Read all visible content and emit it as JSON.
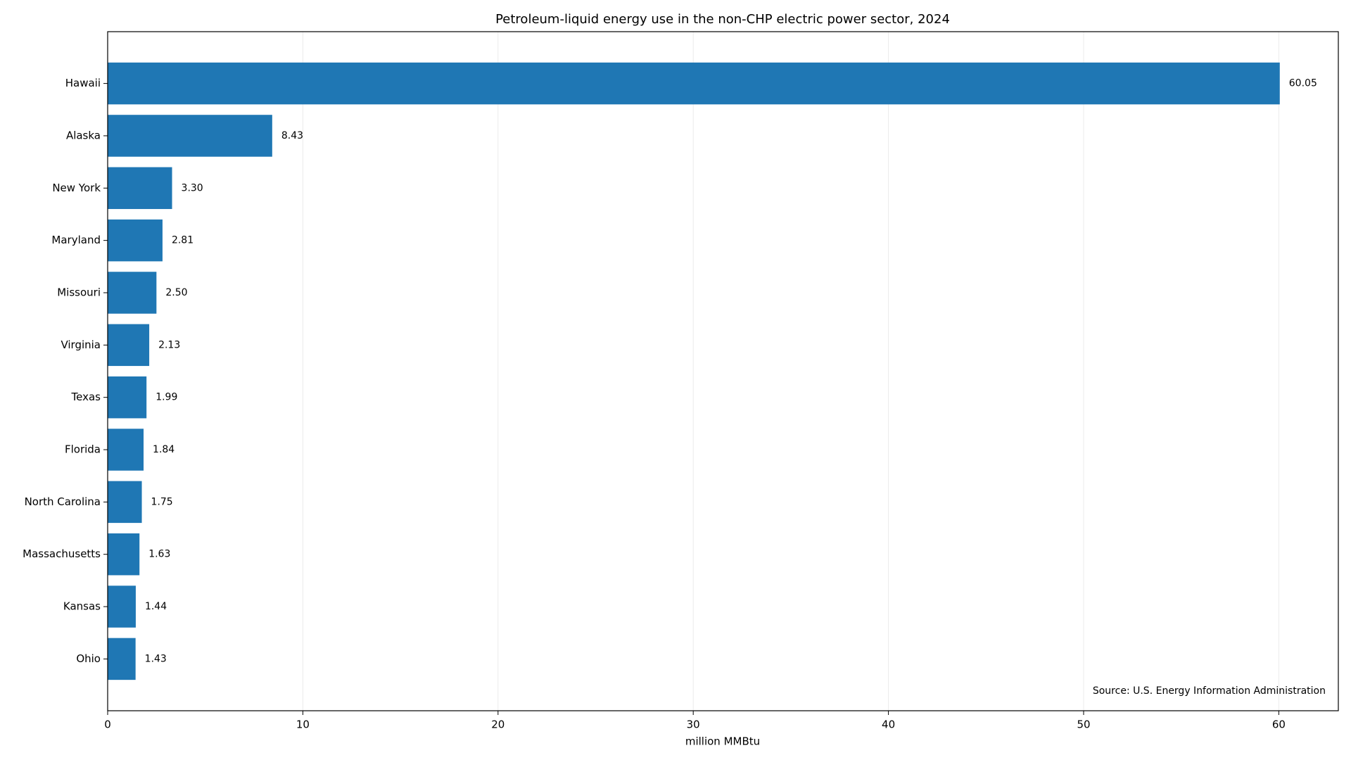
{
  "chart_data": {
    "type": "barh",
    "title": "Petroleum-liquid energy use in the non-CHP electric power sector, 2024",
    "xlabel": "million MMBtu",
    "annotation": "Source: U.S. Energy Information Administration",
    "categories": [
      "Hawaii",
      "Alaska",
      "New York",
      "Maryland",
      "Missouri",
      "Virginia",
      "Texas",
      "Florida",
      "North Carolina",
      "Massachusetts",
      "Kansas",
      "Ohio"
    ],
    "values": [
      60.05,
      8.43,
      3.3,
      2.81,
      2.5,
      2.13,
      1.99,
      1.84,
      1.75,
      1.63,
      1.44,
      1.43
    ],
    "value_labels": [
      "60.05",
      "8.43",
      "3.30",
      "2.81",
      "2.50",
      "2.13",
      "1.99",
      "1.84",
      "1.75",
      "1.63",
      "1.44",
      "1.43"
    ],
    "color": "#1f77b4",
    "xlim": [
      0,
      63.05
    ],
    "xticks": [
      0,
      10,
      20,
      30,
      40,
      50,
      60
    ],
    "grid": true
  }
}
